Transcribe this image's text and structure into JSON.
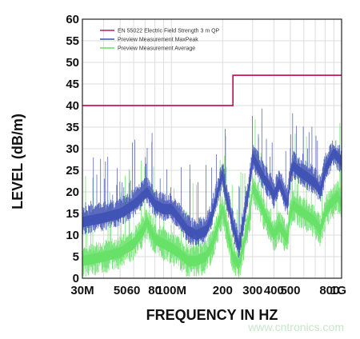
{
  "chart_data": {
    "type": "line",
    "title": "",
    "xlabel": "FREQUENCY IN HZ",
    "ylabel": "LEVEL (dB/m)",
    "x_scale": "log",
    "xlim": [
      30,
      1000
    ],
    "ylim": [
      0,
      60
    ],
    "grid": true,
    "legend_position": "top-left",
    "y_ticks": [
      0,
      5,
      10,
      15,
      20,
      25,
      30,
      35,
      40,
      45,
      50,
      55,
      60
    ],
    "x_ticks": [
      {
        "value": 30,
        "label": "30M"
      },
      {
        "value": 50,
        "label": "50"
      },
      {
        "value": 60,
        "label": "60"
      },
      {
        "value": 80,
        "label": "80"
      },
      {
        "value": 100,
        "label": "100M"
      },
      {
        "value": 200,
        "label": "200"
      },
      {
        "value": 300,
        "label": "300"
      },
      {
        "value": 400,
        "label": "400"
      },
      {
        "value": 500,
        "label": "500"
      },
      {
        "value": 800,
        "label": "800"
      },
      {
        "value": 1000,
        "label": "1G"
      }
    ],
    "series": [
      {
        "name": "EN 55022 Electric  Field Strength 3 m QP",
        "color": "#c2185b",
        "style": "step",
        "x": [
          30,
          230,
          230,
          1000
        ],
        "y": [
          40,
          40,
          47,
          47
        ]
      },
      {
        "name": "Preview Measurement  MaxPeak",
        "color": "#3f51b5",
        "style": "noisy",
        "x": [
          30,
          40,
          50,
          60,
          68,
          72,
          80,
          90,
          100,
          110,
          125,
          140,
          160,
          175,
          190,
          200,
          210,
          230,
          250,
          270,
          290,
          300,
          320,
          350,
          380,
          400,
          430,
          450,
          480,
          500,
          520,
          550,
          600,
          650,
          700,
          750,
          800,
          850,
          900,
          950,
          1000
        ],
        "y": [
          13,
          14,
          15,
          17,
          19,
          20,
          17,
          16,
          16,
          14,
          11,
          10,
          11,
          15,
          21,
          24,
          19,
          12,
          7,
          15,
          23,
          28,
          26,
          23,
          21,
          19,
          22,
          20,
          17,
          24,
          26,
          25,
          24,
          23,
          22,
          20,
          25,
          27,
          29,
          28,
          27
        ]
      },
      {
        "name": "Preview Measurement Average",
        "color": "#66e066",
        "style": "noisy",
        "x": [
          30,
          40,
          50,
          60,
          68,
          72,
          80,
          90,
          100,
          110,
          125,
          140,
          160,
          175,
          190,
          200,
          210,
          230,
          250,
          270,
          290,
          300,
          320,
          350,
          380,
          400,
          430,
          450,
          480,
          500,
          520,
          550,
          600,
          650,
          700,
          750,
          800,
          850,
          900,
          950,
          1000
        ],
        "y": [
          4,
          5,
          6,
          8,
          11,
          13,
          9,
          8,
          7,
          6,
          4,
          4,
          5,
          8,
          13,
          16,
          12,
          5,
          3,
          9,
          15,
          21,
          19,
          15,
          12,
          10,
          12,
          11,
          9,
          15,
          17,
          16,
          15,
          14,
          13,
          11,
          15,
          17,
          18,
          19,
          17
        ]
      }
    ],
    "watermark": "www.cntronics.com"
  }
}
